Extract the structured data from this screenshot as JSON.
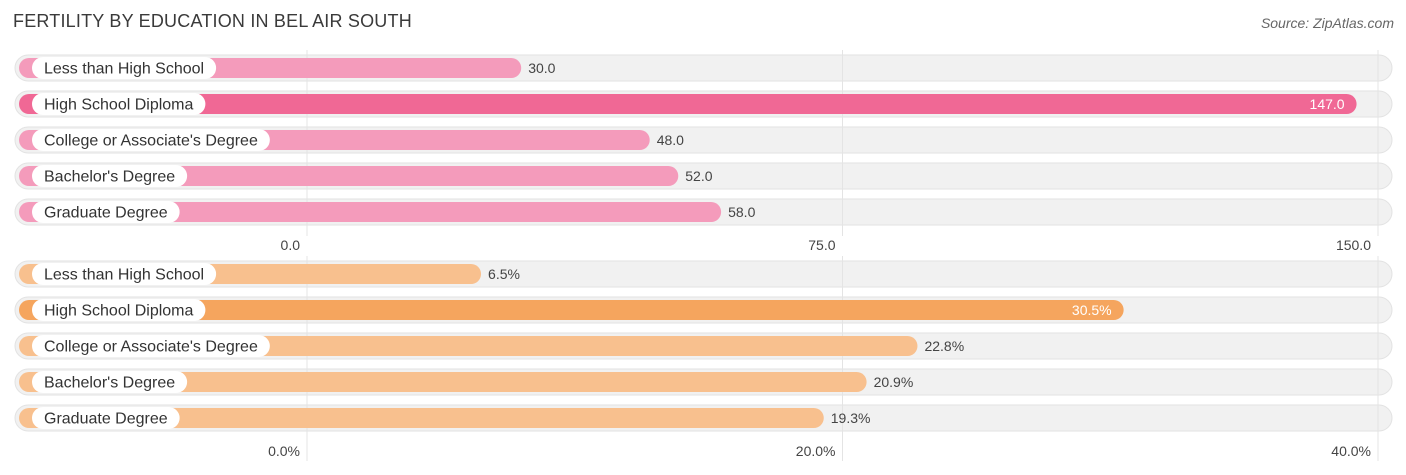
{
  "header": {
    "title": "FERTILITY BY EDUCATION IN BEL AIR SOUTH",
    "source": "Source: ZipAtlas.com"
  },
  "chart_data": [
    {
      "type": "bar",
      "orientation": "horizontal",
      "categories": [
        "Less than High School",
        "High School Diploma",
        "College or Associate's Degree",
        "Bachelor's Degree",
        "Graduate Degree"
      ],
      "values": [
        30.0,
        147.0,
        48.0,
        52.0,
        58.0
      ],
      "value_labels": [
        "30.0",
        "147.0",
        "48.0",
        "52.0",
        "58.0"
      ],
      "xlim": [
        0,
        150
      ],
      "ticks": [
        0,
        75,
        150
      ],
      "tick_labels": [
        "0.0",
        "75.0",
        "150.0"
      ],
      "colors": {
        "bar": "#f49bbb",
        "highlight": "#f06895"
      },
      "highlight_index": 1
    },
    {
      "type": "bar",
      "orientation": "horizontal",
      "categories": [
        "Less than High School",
        "High School Diploma",
        "College or Associate's Degree",
        "Bachelor's Degree",
        "Graduate Degree"
      ],
      "values": [
        6.5,
        30.5,
        22.8,
        20.9,
        19.3
      ],
      "value_labels": [
        "6.5%",
        "30.5%",
        "22.8%",
        "20.9%",
        "19.3%"
      ],
      "xlim": [
        0,
        40
      ],
      "ticks": [
        0,
        20,
        40
      ],
      "tick_labels": [
        "0.0%",
        "20.0%",
        "40.0%"
      ],
      "colors": {
        "bar": "#f8c08e",
        "highlight": "#f5a55e"
      },
      "highlight_index": 1
    }
  ]
}
